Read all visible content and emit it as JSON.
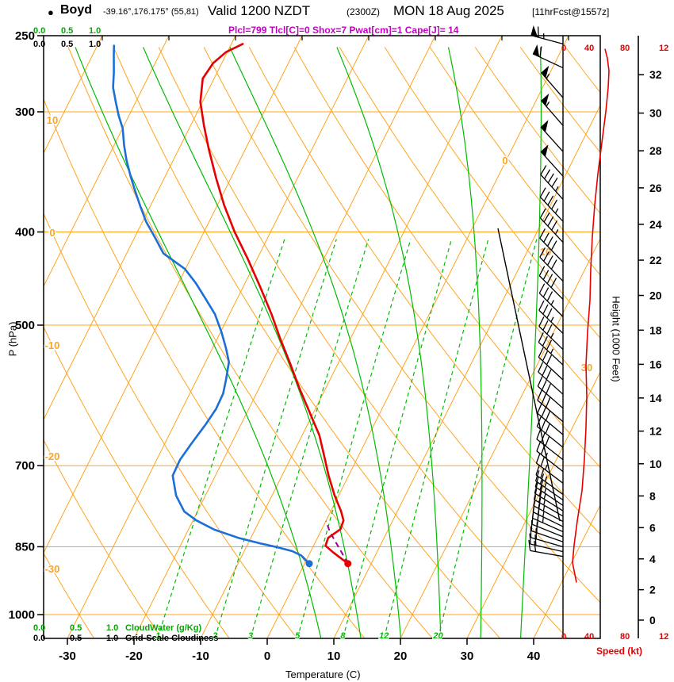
{
  "header": {
    "bullet": "●",
    "station": "Boyd",
    "coordinates": "-39.16°,176.175° (55,81)",
    "valid_label": "Valid 1200 NZDT",
    "valid_utc": "(2300Z)",
    "valid_date": "MON 18 Aug 2025",
    "forecast_info": "[11hrFcst@1557z]",
    "indices_line": "Plcl=799 Tlcl[C]=0 Shox=7 Pwat[cm]=1 Cape[J]= 14"
  },
  "axes": {
    "pressure": {
      "title": "P (hPa)",
      "ticks": [
        250,
        300,
        400,
        500,
        700,
        850,
        1000
      ]
    },
    "temperature": {
      "title": "Temperature (C)",
      "ticks": [
        -30,
        -20,
        -10,
        0,
        10,
        20,
        30,
        40
      ]
    },
    "height": {
      "title": "Height (1000 Feet)",
      "ticks": [
        0,
        2,
        4,
        6,
        8,
        10,
        12,
        14,
        16,
        18,
        20,
        22,
        24,
        26,
        28,
        30,
        32
      ]
    },
    "speed": {
      "title": "Speed (kt)",
      "tick_labels": [
        "0",
        "40",
        "80",
        "12"
      ]
    },
    "cloudwater": {
      "values": [
        "0.0",
        "0.5",
        "1.0"
      ],
      "label": "CloudWater (g/Kg)"
    },
    "cloudiness": {
      "values": [
        "0.0",
        "0.5",
        "1.0"
      ],
      "label": "Grid-Scale Cloudiness"
    }
  },
  "colors": {
    "grid_orange": "#FFA41E",
    "green": "#00BB00",
    "temperature_red": "#E60000",
    "dewpoint_blue": "#1B6FD6",
    "parcel_purple": "#990099",
    "indices_magenta": "#C400C4",
    "speed_red": "#E60000",
    "black": "#000000"
  },
  "chart_data": {
    "type": "line",
    "subtype": "skew-t-log-p-sounding",
    "pressure_range": [
      250,
      1050
    ],
    "isotherm_range": [
      -100,
      50
    ],
    "isotherm_step": 10,
    "isotherm_labels": [
      0,
      10,
      30
    ],
    "dry_adiabat_values": [
      -40,
      -30,
      -20,
      -10,
      0,
      10,
      20,
      30,
      40,
      50,
      60,
      70,
      80,
      90,
      100,
      110,
      120,
      130,
      140
    ],
    "dry_adiabat_labels": [
      10,
      0,
      -10,
      -20,
      -30
    ],
    "mixing_ratio_values": [
      1,
      2,
      3,
      5,
      8,
      12,
      20
    ],
    "moist_adiabat_surface_temps": [
      8,
      14,
      20,
      26,
      32,
      38
    ],
    "temperature_profile": [
      [
        885,
        6.5
      ],
      [
        862,
        3.5
      ],
      [
        848,
        1.8
      ],
      [
        832,
        1.6
      ],
      [
        815,
        2.8
      ],
      [
        798,
        2.6
      ],
      [
        780,
        1.5
      ],
      [
        752,
        -0.6
      ],
      [
        717,
        -3.0
      ],
      [
        683,
        -5.2
      ],
      [
        651,
        -7.4
      ],
      [
        615,
        -10.7
      ],
      [
        581,
        -14.0
      ],
      [
        548,
        -17.2
      ],
      [
        516,
        -20.6
      ],
      [
        487,
        -23.7
      ],
      [
        455,
        -27.6
      ],
      [
        426,
        -31.5
      ],
      [
        400,
        -35.4
      ],
      [
        375,
        -39.0
      ],
      [
        351,
        -42.3
      ],
      [
        328,
        -45.5
      ],
      [
        310,
        -48.0
      ],
      [
        293,
        -50.3
      ],
      [
        277,
        -51.7
      ],
      [
        267,
        -51.3
      ],
      [
        260,
        -50.2
      ],
      [
        255,
        -48.3
      ]
    ],
    "dewpoint_profile": [
      [
        885,
        0.7
      ],
      [
        868,
        -1.1
      ],
      [
        859,
        -2.8
      ],
      [
        851,
        -5.3
      ],
      [
        844,
        -7.9
      ],
      [
        832,
        -11.9
      ],
      [
        816,
        -16.1
      ],
      [
        798,
        -19.5
      ],
      [
        781,
        -22.0
      ],
      [
        752,
        -24.4
      ],
      [
        717,
        -26.4
      ],
      [
        690,
        -26.5
      ],
      [
        664,
        -26.0
      ],
      [
        634,
        -25.3
      ],
      [
        611,
        -24.9
      ],
      [
        589,
        -25.0
      ],
      [
        570,
        -25.6
      ],
      [
        546,
        -26.5
      ],
      [
        528,
        -28.0
      ],
      [
        508,
        -29.9
      ],
      [
        487,
        -32.2
      ],
      [
        469,
        -34.8
      ],
      [
        452,
        -37.4
      ],
      [
        437,
        -40.1
      ],
      [
        421,
        -44.5
      ],
      [
        405,
        -47.0
      ],
      [
        390,
        -49.5
      ],
      [
        376,
        -51.5
      ],
      [
        362,
        -53.5
      ],
      [
        350,
        -55.2
      ],
      [
        337,
        -57.0
      ],
      [
        325,
        -58.5
      ],
      [
        312,
        -60.0
      ],
      [
        303,
        -61.5
      ],
      [
        293,
        -63.0
      ],
      [
        283,
        -64.5
      ],
      [
        273,
        -65.5
      ],
      [
        262,
        -66.8
      ],
      [
        256,
        -67.5
      ]
    ],
    "parcel_path": [
      [
        885,
        6.5
      ],
      [
        860,
        4.6
      ],
      [
        840,
        3.0
      ],
      [
        820,
        1.4
      ],
      [
        799,
        0.0
      ]
    ],
    "surface_temperature_point": [
      885,
      6.5
    ],
    "surface_dewpoint_point": [
      885,
      0.7
    ],
    "wind_barbs": [
      [
        870,
        20,
        280
      ],
      [
        860,
        20,
        283
      ],
      [
        850,
        20,
        286
      ],
      [
        840,
        20,
        289
      ],
      [
        830,
        20,
        292
      ],
      [
        820,
        25,
        294
      ],
      [
        810,
        25,
        296
      ],
      [
        800,
        25,
        298
      ],
      [
        790,
        25,
        300
      ],
      [
        780,
        25,
        302
      ],
      [
        770,
        25,
        304
      ],
      [
        760,
        25,
        305
      ],
      [
        750,
        25,
        306
      ],
      [
        730,
        25,
        307
      ],
      [
        710,
        25,
        308
      ],
      [
        690,
        30,
        308
      ],
      [
        670,
        30,
        309
      ],
      [
        650,
        30,
        310
      ],
      [
        630,
        30,
        310
      ],
      [
        610,
        30,
        311
      ],
      [
        590,
        30,
        312
      ],
      [
        570,
        30,
        313
      ],
      [
        550,
        35,
        313
      ],
      [
        530,
        35,
        314
      ],
      [
        510,
        35,
        314
      ],
      [
        490,
        35,
        315
      ],
      [
        470,
        40,
        315
      ],
      [
        450,
        40,
        316
      ],
      [
        430,
        40,
        316
      ],
      [
        410,
        45,
        317
      ],
      [
        390,
        45,
        317
      ],
      [
        370,
        45,
        318
      ],
      [
        350,
        50,
        318
      ],
      [
        330,
        50,
        318
      ],
      [
        310,
        55,
        319
      ],
      [
        290,
        55,
        319
      ],
      [
        270,
        60,
        295
      ],
      [
        255,
        65,
        285
      ]
    ],
    "wind_speed_profile": [
      [
        926,
        16
      ],
      [
        883,
        11
      ],
      [
        847,
        13
      ],
      [
        799,
        17
      ],
      [
        743,
        23
      ],
      [
        689,
        26
      ],
      [
        639,
        28
      ],
      [
        593,
        29
      ],
      [
        550,
        28
      ],
      [
        508,
        30
      ],
      [
        471,
        33
      ],
      [
        437,
        34
      ],
      [
        405,
        36
      ],
      [
        375,
        39
      ],
      [
        348,
        43
      ],
      [
        323,
        48
      ],
      [
        300,
        53
      ],
      [
        283,
        56
      ],
      [
        272,
        57
      ],
      [
        264,
        55
      ],
      [
        258,
        52
      ]
    ]
  }
}
